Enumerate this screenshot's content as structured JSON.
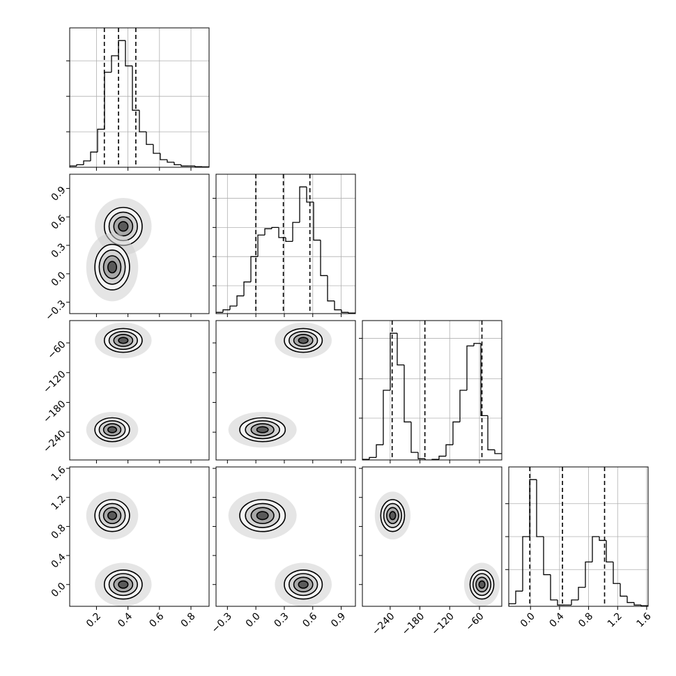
{
  "chart_data": {
    "type": "corner",
    "line_color": "#000000",
    "grid_color": "#b0b0b0",
    "hist_lim": [
      0,
      110
    ],
    "params": [
      {
        "lim": [
          0.03,
          0.915
        ],
        "ticks": [
          0.2,
          0.4,
          0.6,
          0.8
        ],
        "quantiles": [
          0.25,
          0.34,
          0.45
        ],
        "bins": [
          0.03,
          0.07425,
          0.1185,
          0.16275,
          0.207,
          0.25125,
          0.2955,
          0.33975,
          0.384,
          0.42825,
          0.4725,
          0.51675,
          0.561,
          0.60525,
          0.6495,
          0.69375,
          0.738,
          0.78225,
          0.8265,
          0.87075,
          0.915
        ],
        "counts": [
          1,
          2,
          5,
          12,
          30,
          75,
          88,
          100,
          80,
          45,
          28,
          18,
          11,
          6,
          4,
          2,
          1,
          1,
          0.5,
          0.3
        ],
        "hist_ticks": [
          28,
          56,
          84
        ]
      },
      {
        "lim": [
          -0.42,
          1.05
        ],
        "ticks": [
          {
            "value": -0.3,
            "label": "−0.3"
          },
          {
            "value": 0,
            "label": "0.0"
          },
          0.3,
          0.6,
          0.9
        ],
        "quantiles": [
          0.0,
          0.29,
          0.57
        ],
        "bins": [
          -0.42,
          -0.3465,
          -0.273,
          -0.1995,
          -0.126,
          -0.0525,
          0.021,
          0.0945,
          0.168,
          0.2415,
          0.315,
          0.3885,
          0.462,
          0.5355,
          0.609,
          0.6825,
          0.756,
          0.8295,
          0.903,
          0.9765,
          1.05
        ],
        "counts": [
          1,
          3,
          6,
          14,
          25,
          45,
          62,
          67,
          68,
          60,
          57,
          72,
          100,
          88,
          58,
          30,
          10,
          3,
          1,
          0.5
        ],
        "hist_ticks": [
          22,
          45,
          68,
          91
        ]
      },
      {
        "lim": [
          -296,
          -15
        ],
        "ticks": [
          {
            "value": -240,
            "label": "−240"
          },
          {
            "value": -180,
            "label": "−180"
          },
          {
            "value": -120,
            "label": "−120"
          },
          {
            "value": -60,
            "label": "−60"
          }
        ],
        "quantiles": [
          -236,
          -170,
          -55
        ],
        "bins": [
          -296,
          -281.95,
          -267.9,
          -253.85,
          -239.8,
          -225.75,
          -211.7,
          -197.65,
          -183.6,
          -169.55,
          -155.5,
          -141.45,
          -127.4,
          -113.35,
          -99.3,
          -85.25,
          -71.2,
          -57.15,
          -43.1,
          -29.05,
          -15
        ],
        "counts": [
          0.5,
          2,
          12,
          55,
          100,
          75,
          30,
          6,
          1,
          0,
          0.5,
          3,
          12,
          30,
          55,
          90,
          92,
          35,
          8,
          5
        ],
        "hist_ticks": [
          33,
          64,
          96
        ]
      },
      {
        "lim": [
          -0.3,
          1.62
        ],
        "ticks": [
          {
            "value": 0,
            "label": "0.0"
          },
          0.4,
          0.8,
          1.2,
          1.6
        ],
        "quantiles": [
          -0.01,
          0.44,
          1.02
        ],
        "bins": [
          -0.3,
          -0.204,
          -0.108,
          -0.012,
          0.084,
          0.18,
          0.276,
          0.372,
          0.468,
          0.564,
          0.66,
          0.756,
          0.852,
          0.948,
          1.044,
          1.14,
          1.236,
          1.332,
          1.428,
          1.524,
          1.62
        ],
        "counts": [
          2,
          12,
          55,
          100,
          55,
          25,
          5,
          1,
          1,
          5,
          15,
          35,
          55,
          52,
          35,
          18,
          8,
          3,
          1,
          0.5
        ],
        "hist_ticks": [
          29,
          55,
          81
        ]
      }
    ],
    "modes": [
      {
        "mean": [
          0.37,
          0.5,
          -55,
          0.0
        ],
        "sd": [
          0.06,
          0.1,
          12,
          0.1
        ]
      },
      {
        "mean": [
          0.3,
          0.07,
          -235,
          0.95
        ],
        "sd": [
          0.055,
          0.12,
          12,
          0.11
        ]
      }
    ],
    "contour_levels": [
      3,
      2,
      1.5,
      1,
      0.5
    ],
    "contour_fills": [
      "#d0d0d0",
      "#f4f4f4",
      "#d4d4d4",
      "#a8a8a8",
      "#5a5a5a"
    ]
  }
}
